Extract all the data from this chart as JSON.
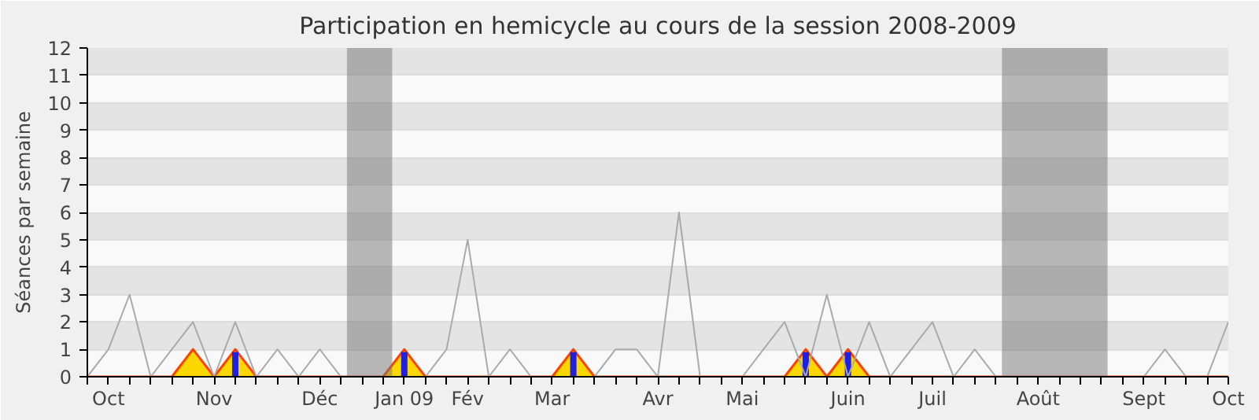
{
  "chart_data": {
    "type": "line",
    "title": "Participation en hemicycle au cours de la session 2008-2009",
    "ylabel": "Séances par semaine",
    "x": [
      "2008-09-29",
      "2008-10-06",
      "2008-10-13",
      "2008-10-20",
      "2008-10-27",
      "2008-11-03",
      "2008-11-10",
      "2008-11-17",
      "2008-11-24",
      "2008-12-01",
      "2008-12-08",
      "2008-12-15",
      "2008-12-22",
      "2008-12-29",
      "2009-01-05",
      "2009-01-12",
      "2009-01-19",
      "2009-01-26",
      "2009-02-02",
      "2009-02-09",
      "2009-02-16",
      "2009-02-23",
      "2009-03-02",
      "2009-03-09",
      "2009-03-16",
      "2009-03-23",
      "2009-03-30",
      "2009-04-06",
      "2009-04-13",
      "2009-04-20",
      "2009-04-27",
      "2009-05-04",
      "2009-05-11",
      "2009-05-18",
      "2009-05-25",
      "2009-06-01",
      "2009-06-08",
      "2009-06-15",
      "2009-06-22",
      "2009-06-29",
      "2009-07-06",
      "2009-07-13",
      "2009-07-20",
      "2009-07-27",
      "2009-08-03",
      "2009-08-10",
      "2009-08-17",
      "2009-08-24",
      "2009-08-31",
      "2009-09-07",
      "2009-09-14",
      "2009-09-21",
      "2009-09-28",
      "2009-10-05",
      "2009-10-12"
    ],
    "series": [
      {
        "type": "area",
        "color": "#ffd700",
        "values": [
          0,
          0,
          0,
          0,
          0,
          1,
          0,
          1,
          0,
          0,
          0,
          0,
          0,
          0,
          0,
          1,
          0,
          0,
          0,
          0,
          0,
          0,
          0,
          1,
          0,
          0,
          0,
          0,
          0,
          0,
          0,
          0,
          0,
          0,
          1,
          0,
          1,
          0,
          0,
          0,
          0,
          0,
          0,
          0,
          0,
          0,
          0,
          0,
          0,
          0,
          0,
          0,
          0,
          0,
          0
        ]
      },
      {
        "type": "bar",
        "color": "#2020e0",
        "x": [
          "2008-11-17",
          "2009-01-12",
          "2009-03-09",
          "2009-05-25",
          "2009-06-08"
        ],
        "values": [
          0.9,
          0.9,
          0.9,
          0.9,
          0.9
        ]
      },
      {
        "color": "#aaaaaa",
        "values": [
          0,
          1,
          3,
          0,
          1,
          2,
          0,
          2,
          0,
          1,
          0,
          1,
          0,
          0,
          0,
          0,
          0,
          1,
          5,
          0,
          1,
          0,
          0,
          0,
          0,
          1,
          1,
          0,
          6,
          0,
          0,
          0,
          1,
          2,
          0,
          3,
          0,
          2,
          0,
          1,
          2,
          0,
          1,
          0,
          0,
          0,
          0,
          0,
          0,
          0,
          0,
          1,
          0,
          0,
          2
        ]
      }
    ],
    "xlim": [
      "2008-09-29",
      "2009-10-12"
    ],
    "ylim": [
      0,
      12
    ],
    "yticks": [
      0,
      1,
      2,
      3,
      4,
      5,
      6,
      7,
      8,
      9,
      10,
      11,
      12
    ],
    "xticks": [
      {
        "value": "2008-09-29",
        "label": null
      },
      {
        "value": "2008-10-06",
        "label": "Oct"
      },
      {
        "value": "2008-10-13",
        "label": null
      },
      {
        "value": "2008-10-20",
        "label": null
      },
      {
        "value": "2008-10-27",
        "label": null
      },
      {
        "value": "2008-11-03",
        "label": null
      },
      {
        "value": "2008-11-10",
        "label": "Nov"
      },
      {
        "value": "2008-11-17",
        "label": null
      },
      {
        "value": "2008-11-24",
        "label": null
      },
      {
        "value": "2008-12-01",
        "label": null
      },
      {
        "value": "2008-12-08",
        "label": null
      },
      {
        "value": "2008-12-15",
        "label": "Déc"
      },
      {
        "value": "2008-12-22",
        "label": null
      },
      {
        "value": "2008-12-29",
        "label": null
      },
      {
        "value": "2009-01-05",
        "label": null
      },
      {
        "value": "2009-01-12",
        "label": "Jan 09"
      },
      {
        "value": "2009-01-19",
        "label": null
      },
      {
        "value": "2009-01-26",
        "label": null
      },
      {
        "value": "2009-02-02",
        "label": "Fév"
      },
      {
        "value": "2009-02-09",
        "label": null
      },
      {
        "value": "2009-02-16",
        "label": null
      },
      {
        "value": "2009-02-23",
        "label": null
      },
      {
        "value": "2009-03-02",
        "label": "Mar"
      },
      {
        "value": "2009-03-09",
        "label": null
      },
      {
        "value": "2009-03-16",
        "label": null
      },
      {
        "value": "2009-03-23",
        "label": null
      },
      {
        "value": "2009-03-30",
        "label": null
      },
      {
        "value": "2009-04-06",
        "label": "Avr"
      },
      {
        "value": "2009-04-13",
        "label": null
      },
      {
        "value": "2009-04-20",
        "label": null
      },
      {
        "value": "2009-04-27",
        "label": null
      },
      {
        "value": "2009-05-04",
        "label": "Mai"
      },
      {
        "value": "2009-05-11",
        "label": null
      },
      {
        "value": "2009-05-18",
        "label": null
      },
      {
        "value": "2009-05-25",
        "label": null
      },
      {
        "value": "2009-06-01",
        "label": null
      },
      {
        "value": "2009-06-08",
        "label": "Juin"
      },
      {
        "value": "2009-06-15",
        "label": null
      },
      {
        "value": "2009-06-22",
        "label": null
      },
      {
        "value": "2009-06-29",
        "label": null
      },
      {
        "value": "2009-07-06",
        "label": "Juil"
      },
      {
        "value": "2009-07-13",
        "label": null
      },
      {
        "value": "2009-07-20",
        "label": null
      },
      {
        "value": "2009-07-27",
        "label": null
      },
      {
        "value": "2009-08-03",
        "label": null
      },
      {
        "value": "2009-08-10",
        "label": "Août"
      },
      {
        "value": "2009-08-17",
        "label": null
      },
      {
        "value": "2009-08-24",
        "label": null
      },
      {
        "value": "2009-08-31",
        "label": null
      },
      {
        "value": "2009-09-07",
        "label": null
      },
      {
        "value": "2009-09-14",
        "label": "Sept"
      },
      {
        "value": "2009-09-21",
        "label": null
      },
      {
        "value": "2009-09-28",
        "label": null
      },
      {
        "value": "2009-10-05",
        "label": null
      },
      {
        "value": "2009-10-12",
        "label": "Oct"
      }
    ],
    "bands": [
      {
        "axis": "x",
        "from": "2008-12-24",
        "to": "2009-01-08",
        "color": "#737373"
      },
      {
        "axis": "x",
        "from": "2009-07-29",
        "to": "2009-09-02",
        "color": "#737373"
      }
    ],
    "grid": "y"
  }
}
